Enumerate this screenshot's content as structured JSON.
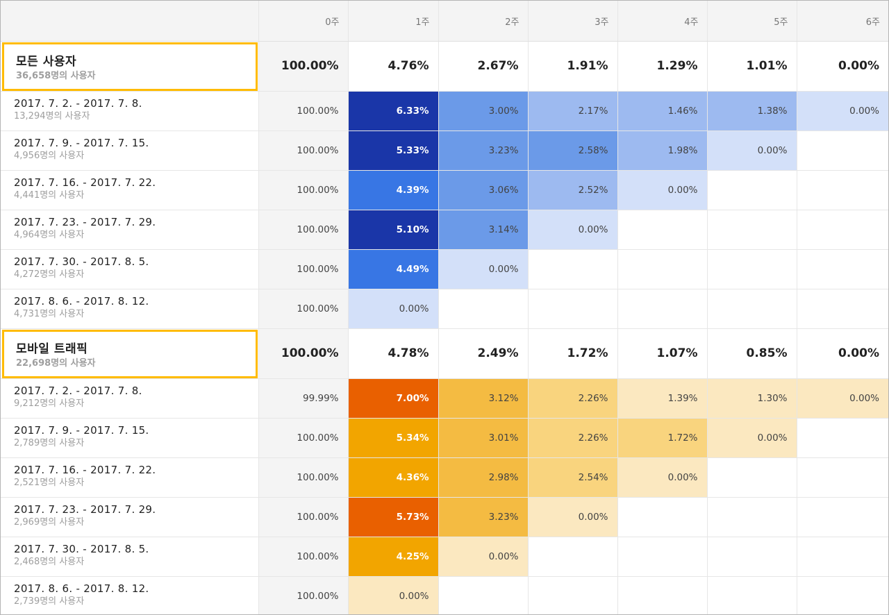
{
  "weeks": [
    "0주",
    "1주",
    "2주",
    "3주",
    "4주",
    "5주",
    "6주"
  ],
  "segments": [
    {
      "name": "모든 사용자",
      "count": "36,658명의 사용자",
      "totals": [
        "100.00%",
        "4.76%",
        "2.67%",
        "1.91%",
        "1.29%",
        "1.01%",
        "0.00%"
      ],
      "rows": [
        {
          "date": "2017. 7. 2. - 2017. 7. 8.",
          "users": "13,294명의 사용자",
          "cells": [
            "100.00%",
            "6.33%",
            "3.00%",
            "2.17%",
            "1.46%",
            "1.38%",
            "0.00%"
          ],
          "colors": [
            "",
            "#1a36a8",
            "#6b9ae8",
            "#9dbaf0",
            "#9dbaf0",
            "#9dbaf0",
            "#d3e0f9"
          ]
        },
        {
          "date": "2017. 7. 9. - 2017. 7. 15.",
          "users": "4,956명의 사용자",
          "cells": [
            "100.00%",
            "5.33%",
            "3.23%",
            "2.58%",
            "1.98%",
            "0.00%"
          ],
          "colors": [
            "",
            "#1a36a8",
            "#6b9ae8",
            "#6b9ae8",
            "#9dbaf0",
            "#d3e0f9"
          ]
        },
        {
          "date": "2017. 7. 16. - 2017. 7. 22.",
          "users": "4,441명의 사용자",
          "cells": [
            "100.00%",
            "4.39%",
            "3.06%",
            "2.52%",
            "0.00%"
          ],
          "colors": [
            "",
            "#3876e4",
            "#6b9ae8",
            "#9dbaf0",
            "#d3e0f9"
          ]
        },
        {
          "date": "2017. 7. 23. - 2017. 7. 29.",
          "users": "4,964명의 사용자",
          "cells": [
            "100.00%",
            "5.10%",
            "3.14%",
            "0.00%"
          ],
          "colors": [
            "",
            "#1a36a8",
            "#6b9ae8",
            "#d3e0f9"
          ]
        },
        {
          "date": "2017. 7. 30. - 2017. 8. 5.",
          "users": "4,272명의 사용자",
          "cells": [
            "100.00%",
            "4.49%",
            "0.00%"
          ],
          "colors": [
            "",
            "#3876e4",
            "#d3e0f9"
          ]
        },
        {
          "date": "2017. 8. 6. - 2017. 8. 12.",
          "users": "4,731명의 사용자",
          "cells": [
            "100.00%",
            "0.00%"
          ],
          "colors": [
            "",
            "#d3e0f9"
          ]
        }
      ]
    },
    {
      "name": "모바일 트래픽",
      "count": "22,698명의 사용자",
      "totals": [
        "100.00%",
        "4.78%",
        "2.49%",
        "1.72%",
        "1.07%",
        "0.85%",
        "0.00%"
      ],
      "rows": [
        {
          "date": "2017. 7. 2. - 2017. 7. 8.",
          "users": "9,212명의 사용자",
          "cells": [
            "99.99%",
            "7.00%",
            "3.12%",
            "2.26%",
            "1.39%",
            "1.30%",
            "0.00%"
          ],
          "colors": [
            "",
            "#e96000",
            "#f4bb42",
            "#f9d47e",
            "#fbe8c0",
            "#fbe8c0",
            "#fbe8c0"
          ]
        },
        {
          "date": "2017. 7. 9. - 2017. 7. 15.",
          "users": "2,789명의 사용자",
          "cells": [
            "100.00%",
            "5.34%",
            "3.01%",
            "2.26%",
            "1.72%",
            "0.00%"
          ],
          "colors": [
            "",
            "#f2a500",
            "#f4bb42",
            "#f9d47e",
            "#f9d47e",
            "#fbe8c0"
          ]
        },
        {
          "date": "2017. 7. 16. - 2017. 7. 22.",
          "users": "2,521명의 사용자",
          "cells": [
            "100.00%",
            "4.36%",
            "2.98%",
            "2.54%",
            "0.00%"
          ],
          "colors": [
            "",
            "#f2a500",
            "#f4bb42",
            "#f9d47e",
            "#fbe8c0"
          ]
        },
        {
          "date": "2017. 7. 23. - 2017. 7. 29.",
          "users": "2,969명의 사용자",
          "cells": [
            "100.00%",
            "5.73%",
            "3.23%",
            "0.00%"
          ],
          "colors": [
            "",
            "#e96000",
            "#f4bb42",
            "#fbe8c0"
          ]
        },
        {
          "date": "2017. 7. 30. - 2017. 8. 5.",
          "users": "2,468명의 사용자",
          "cells": [
            "100.00%",
            "4.25%",
            "0.00%"
          ],
          "colors": [
            "",
            "#f2a500",
            "#fbe8c0"
          ]
        },
        {
          "date": "2017. 8. 6. - 2017. 8. 12.",
          "users": "2,739명의 사용자",
          "cells": [
            "100.00%",
            "0.00%"
          ],
          "colors": [
            "",
            "#fbe8c0"
          ]
        }
      ]
    }
  ],
  "colors": {
    "highlight_border": "#ffbb00",
    "header_bg": "#f4f4f4",
    "dark_text_on": [
      "#1a36a8",
      "#3876e4",
      "#e96000",
      "#f2a500"
    ]
  }
}
